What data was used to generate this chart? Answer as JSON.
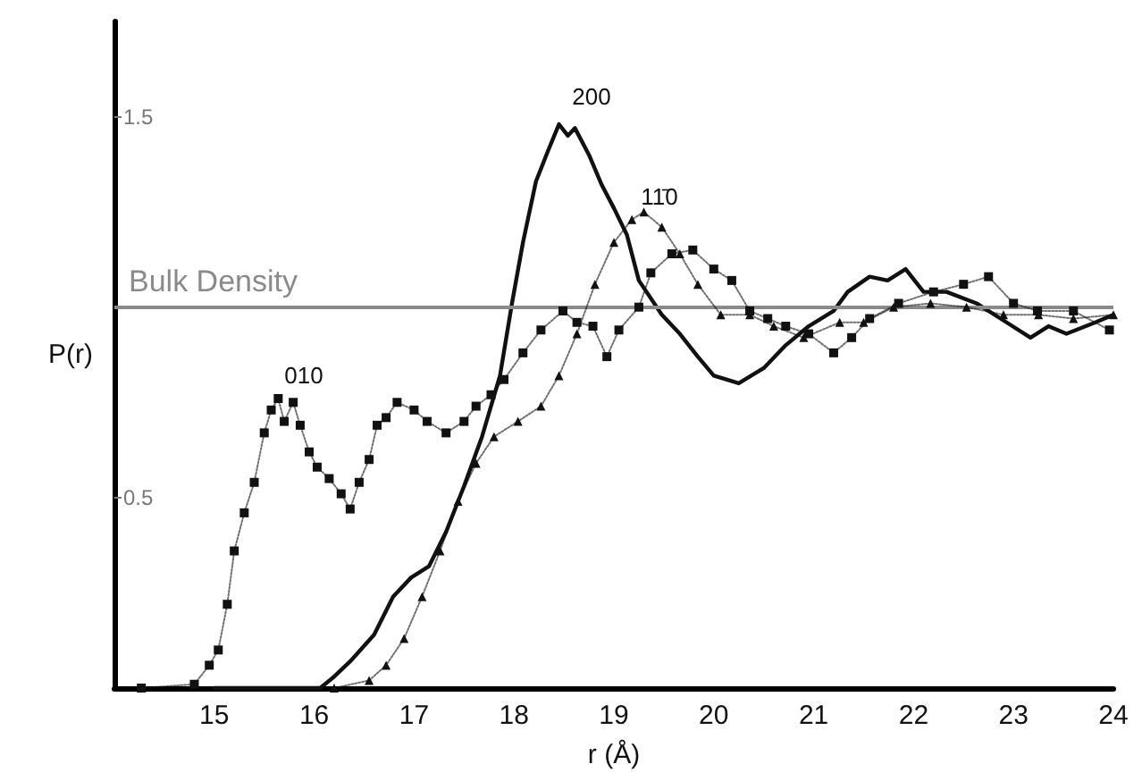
{
  "chart_data": {
    "type": "line",
    "xlabel": "r (Å)",
    "ylabel": "P(r)",
    "xlim": [
      14,
      24
    ],
    "ylim": [
      0,
      1.75
    ],
    "xticks": [
      15,
      16,
      17,
      18,
      19,
      20,
      21,
      22,
      23,
      24
    ],
    "yticks": [
      0.5,
      1.5
    ],
    "grid": false,
    "series": [
      {
        "color": "#111111",
        "marker": "square",
        "line_style": "dotted",
        "x": [
          14.27,
          14.8,
          14.95,
          15.04,
          15.13,
          15.2,
          15.3,
          15.4,
          15.5,
          15.57,
          15.64,
          15.7,
          15.79,
          15.86,
          15.95,
          16.03,
          16.15,
          16.27,
          16.36,
          16.45,
          16.55,
          16.63,
          16.72,
          16.83,
          17.0,
          17.13,
          17.32,
          17.5,
          17.62,
          17.77,
          17.9,
          18.09,
          18.27,
          18.49,
          18.63,
          18.79,
          18.93,
          19.05,
          19.25,
          19.37,
          19.58,
          19.79,
          20.0,
          20.18,
          20.36,
          20.54,
          20.72,
          20.95,
          21.2,
          21.38,
          21.56,
          21.85,
          22.2,
          22.5,
          22.75,
          23.0,
          23.24,
          23.6,
          23.96
        ],
        "values": [
          0,
          0.01,
          0.06,
          0.1,
          0.22,
          0.36,
          0.46,
          0.54,
          0.67,
          0.73,
          0.76,
          0.7,
          0.75,
          0.69,
          0.62,
          0.58,
          0.55,
          0.51,
          0.47,
          0.54,
          0.6,
          0.69,
          0.71,
          0.75,
          0.73,
          0.7,
          0.67,
          0.7,
          0.74,
          0.77,
          0.81,
          0.88,
          0.94,
          0.99,
          0.96,
          0.95,
          0.87,
          0.94,
          1.0,
          1.09,
          1.14,
          1.15,
          1.1,
          1.07,
          0.99,
          0.97,
          0.95,
          0.93,
          0.88,
          0.92,
          0.97,
          1.01,
          1.04,
          1.06,
          1.08,
          1.01,
          0.99,
          0.99,
          0.94
        ]
      },
      {
        "color": "#111111",
        "marker": "none",
        "line_style": "solid",
        "x": [
          15.0,
          16.06,
          16.2,
          16.36,
          16.6,
          16.79,
          16.97,
          17.15,
          17.32,
          17.5,
          17.68,
          17.86,
          17.98,
          18.09,
          18.22,
          18.34,
          18.45,
          18.54,
          18.61,
          18.75,
          18.88,
          19.0,
          19.13,
          19.25,
          19.48,
          19.66,
          19.84,
          20.0,
          20.25,
          20.5,
          20.72,
          20.95,
          21.2,
          21.34,
          21.56,
          21.74,
          21.92,
          22.1,
          22.33,
          22.63,
          22.93,
          23.17,
          23.35,
          23.53,
          23.82,
          24.0
        ],
        "values": [
          0,
          0,
          0.03,
          0.07,
          0.14,
          0.24,
          0.29,
          0.32,
          0.41,
          0.53,
          0.66,
          0.82,
          1.01,
          1.17,
          1.33,
          1.41,
          1.48,
          1.45,
          1.47,
          1.4,
          1.32,
          1.26,
          1.19,
          1.07,
          0.98,
          0.93,
          0.87,
          0.82,
          0.8,
          0.84,
          0.9,
          0.95,
          0.99,
          1.04,
          1.08,
          1.07,
          1.1,
          1.04,
          1.04,
          1.01,
          0.96,
          0.92,
          0.95,
          0.93,
          0.96,
          0.98
        ]
      },
      {
        "color": "#111111",
        "marker": "triangle",
        "line_style": "dotted",
        "x": [
          16.2,
          16.55,
          16.72,
          16.9,
          17.08,
          17.26,
          17.44,
          17.62,
          17.8,
          18.04,
          18.27,
          18.45,
          18.63,
          18.81,
          19.0,
          19.18,
          19.3,
          19.48,
          19.66,
          19.84,
          20.07,
          20.36,
          20.6,
          20.9,
          21.26,
          21.5,
          21.8,
          22.17,
          22.53,
          22.9,
          23.25,
          23.6,
          24.0
        ],
        "values": [
          0,
          0.02,
          0.06,
          0.13,
          0.24,
          0.36,
          0.49,
          0.59,
          0.66,
          0.7,
          0.74,
          0.82,
          0.93,
          1.06,
          1.17,
          1.23,
          1.25,
          1.21,
          1.14,
          1.06,
          0.98,
          0.98,
          0.95,
          0.92,
          0.96,
          0.96,
          1.0,
          1.01,
          1.0,
          0.98,
          0.98,
          0.97,
          0.98
        ]
      }
    ],
    "ref_lines": [
      {
        "axis": "y",
        "value": 1,
        "label": "Bulk Density",
        "color": "#8a8a8a"
      }
    ],
    "annotations": [
      "200",
      "11̄0",
      "010"
    ]
  }
}
